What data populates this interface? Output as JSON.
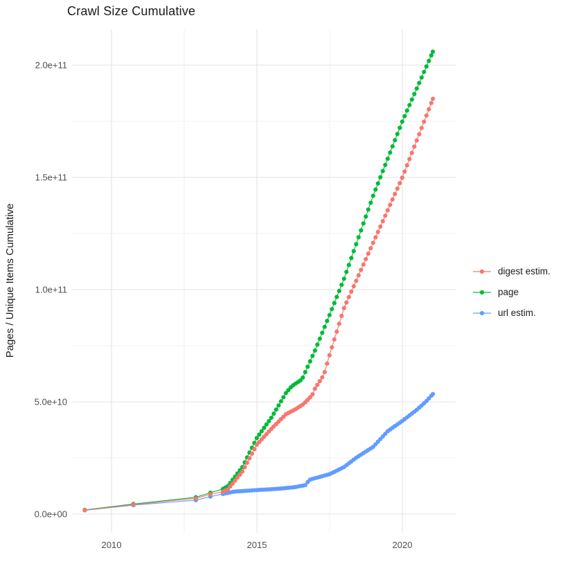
{
  "title": "Crawl Size Cumulative",
  "y_axis_label": "Pages / Unique Items Cumulative",
  "colors": {
    "digest_estim": "#F8766D",
    "page": "#00BA38",
    "url_estim": "#619CFF",
    "gridline_major": "#E3E3E3",
    "gridline_minor": "#F1F1F1",
    "tick_label": "#4D4D4D",
    "text": "#1A1A1A",
    "background": "#FFFFFF"
  },
  "chart_data": {
    "type": "line",
    "title": "Crawl Size Cumulative",
    "xlabel": "",
    "ylabel": "Pages / Unique Items Cumulative",
    "legend_position": "right",
    "grid": "major and minor, light gray on white",
    "marker": "filled point chain with thin connecting line",
    "x_range": [
      2008.643,
      2021.833
    ],
    "y_range": [
      -8330000000.0,
      216050000000.0
    ],
    "x_ticks": {
      "values": [
        2010,
        2015,
        2020
      ],
      "labels": [
        "2010",
        "2015",
        "2020"
      ]
    },
    "x_minor_gridlines": [
      2012.5,
      2017.5
    ],
    "y_ticks": {
      "values": [
        0,
        50000000000.0,
        100000000000.0,
        150000000000.0,
        200000000000.0
      ],
      "labels": [
        "0.0e+00",
        "5.0e+10",
        "1.0e+11",
        "1.5e+11",
        "2.0e+11"
      ]
    },
    "y_minor_gridlines": [
      25000000000.0,
      75000000000.0,
      125000000000.0,
      175000000000.0
    ],
    "dense_start_year": 2013.83,
    "end_year": 2021.05,
    "dot_interval_years": 0.0833,
    "series": [
      {
        "name": "digest estim.",
        "color": "#F8766D",
        "waypoints": [
          [
            2009.08,
            1800000000.0
          ],
          [
            2010.75,
            4200000000.0
          ],
          [
            2012.9,
            7000000000.0
          ],
          [
            2013.4,
            8800000000.0
          ],
          [
            2013.83,
            10000000000.0
          ],
          [
            2014.0,
            11000000000.0
          ],
          [
            2014.5,
            19000000000.0
          ],
          [
            2015.0,
            31000000000.0
          ],
          [
            2015.5,
            38000000000.0
          ],
          [
            2016.0,
            44500000000.0
          ],
          [
            2016.3,
            46500000000.0
          ],
          [
            2016.6,
            49000000000.0
          ],
          [
            2016.9,
            53000000000.0
          ],
          [
            2017.0,
            56000000000.0
          ],
          [
            2017.3,
            62000000000.0
          ],
          [
            2017.5,
            71000000000.0
          ],
          [
            2018.0,
            92000000000.0
          ],
          [
            2019.0,
            121000000000.0
          ],
          [
            2020.0,
            150000000000.0
          ],
          [
            2021.05,
            185000000000.0
          ]
        ]
      },
      {
        "name": "page",
        "color": "#00BA38",
        "waypoints": [
          [
            2009.08,
            1900000000.0
          ],
          [
            2010.75,
            4500000000.0
          ],
          [
            2012.9,
            7500000000.0
          ],
          [
            2013.4,
            9500000000.0
          ],
          [
            2013.83,
            11200000000.0
          ],
          [
            2014.0,
            12500000000.0
          ],
          [
            2014.5,
            21000000000.0
          ],
          [
            2015.0,
            34000000000.0
          ],
          [
            2015.5,
            43000000000.0
          ],
          [
            2016.0,
            54000000000.0
          ],
          [
            2016.2,
            57000000000.0
          ],
          [
            2016.55,
            60000000000.0
          ],
          [
            2017.0,
            73000000000.0
          ],
          [
            2017.6,
            92000000000.0
          ],
          [
            2018.0,
            105000000000.0
          ],
          [
            2019.0,
            142000000000.0
          ],
          [
            2020.0,
            175000000000.0
          ],
          [
            2021.05,
            206000000000.0
          ]
        ]
      },
      {
        "name": "url estim.",
        "color": "#619CFF",
        "waypoints": [
          [
            2009.08,
            1700000000.0
          ],
          [
            2010.75,
            4000000000.0
          ],
          [
            2012.9,
            6200000000.0
          ],
          [
            2013.4,
            7800000000.0
          ],
          [
            2013.83,
            9000000000.0
          ],
          [
            2014.2,
            10000000000.0
          ],
          [
            2015.0,
            10700000000.0
          ],
          [
            2015.75,
            11300000000.0
          ],
          [
            2016.3,
            12000000000.0
          ],
          [
            2016.7,
            13000000000.0
          ],
          [
            2016.78,
            15200000000.0
          ],
          [
            2017.0,
            16000000000.0
          ],
          [
            2017.5,
            17800000000.0
          ],
          [
            2018.0,
            21000000000.0
          ],
          [
            2018.4,
            25000000000.0
          ],
          [
            2019.0,
            30000000000.0
          ],
          [
            2019.5,
            37000000000.0
          ],
          [
            2020.0,
            41500000000.0
          ],
          [
            2020.5,
            46500000000.0
          ],
          [
            2020.8,
            50000000000.0
          ],
          [
            2021.05,
            53500000000.0
          ]
        ]
      }
    ]
  }
}
